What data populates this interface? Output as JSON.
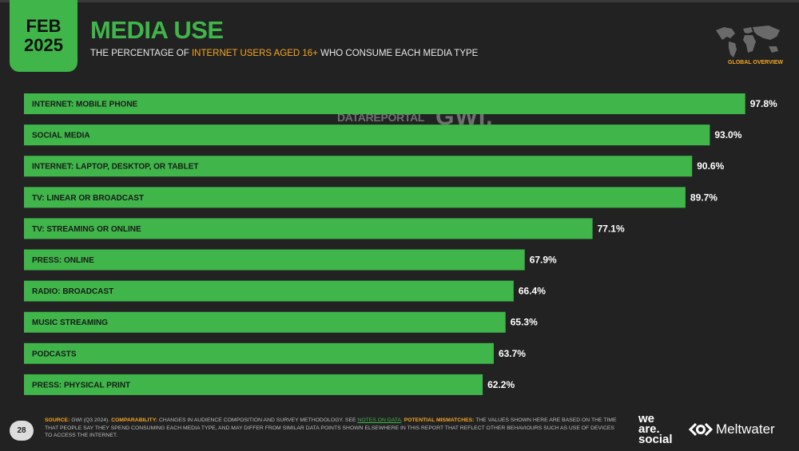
{
  "header": {
    "month": "FEB",
    "year": "2025",
    "title": "MEDIA USE",
    "subtitle_pre": "THE PERCENTAGE OF ",
    "subtitle_highlight": "INTERNET USERS AGED 16+",
    "subtitle_post": " WHO CONSUME EACH MEDIA TYPE",
    "region_label": "GLOBAL OVERVIEW"
  },
  "watermark": {
    "datareportal": "DATAREPORTAL",
    "gwi": "GWI."
  },
  "chart_data": {
    "type": "bar",
    "orientation": "horizontal",
    "categories": [
      "INTERNET: MOBILE PHONE",
      "SOCIAL MEDIA",
      "INTERNET: LAPTOP, DESKTOP, OR TABLET",
      "TV: LINEAR OR BROADCAST",
      "TV: STREAMING OR ONLINE",
      "PRESS: ONLINE",
      "RADIO: BROADCAST",
      "MUSIC STREAMING",
      "PODCASTS",
      "PRESS: PHYSICAL PRINT"
    ],
    "values": [
      97.8,
      93.0,
      90.6,
      89.7,
      77.1,
      67.9,
      66.4,
      65.3,
      63.7,
      62.2
    ],
    "value_labels": [
      "97.8%",
      "93.0%",
      "90.6%",
      "89.7%",
      "77.1%",
      "67.9%",
      "66.4%",
      "65.3%",
      "63.7%",
      "62.2%"
    ],
    "xlim": [
      0,
      100
    ],
    "bar_color": "#3fb54a",
    "grid": false
  },
  "footer": {
    "page_number": "28",
    "source_key": "SOURCE:",
    "source_text": " GWI (Q3 2024). ",
    "comparability_key": "COMPARABILITY:",
    "comparability_text": " CHANGES IN AUDIENCE COMPOSITION AND SURVEY METHODOLOGY. SEE ",
    "notes_link": "NOTES ON DATA",
    "period": ". ",
    "mismatch_key": "POTENTIAL MISMATCHES:",
    "mismatch_text": " THE VALUES SHOWN HERE ARE BASED ON THE TIME THAT PEOPLE SAY THEY SPEND CONSUMING EACH MEDIA TYPE, AND MAY DIFFER FROM SIMILAR DATA POINTS SHOWN ELSEWHERE IN THIS REPORT THAT REFLECT OTHER BEHAVIOURS SUCH AS USE OF DEVICES TO ACCESS THE INTERNET.",
    "brand_line1": "we",
    "brand_line2": "are.",
    "brand_line3": "social",
    "meltwater": "Meltwater"
  },
  "colors": {
    "background": "#222222",
    "accent_green": "#3fb54a",
    "accent_orange": "#f4a623"
  }
}
